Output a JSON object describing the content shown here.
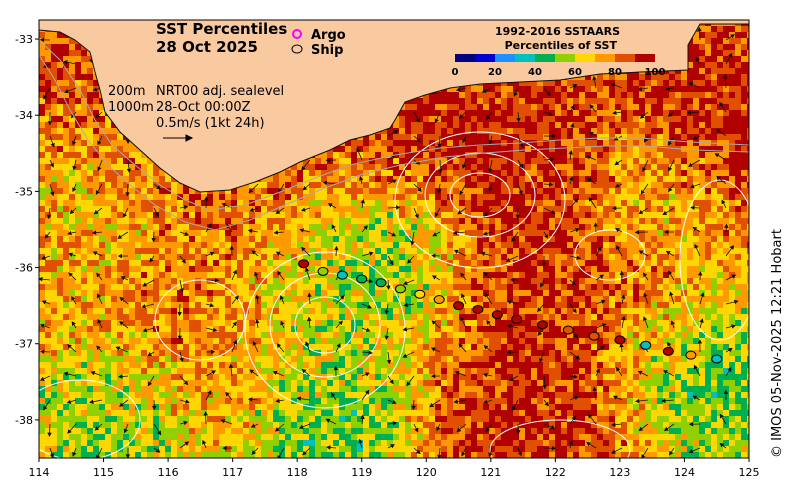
{
  "title": "SST Percentiles",
  "date": "28 Oct 2025",
  "legend": {
    "argo": "Argo",
    "ship": "Ship",
    "argo_color": "#ff00ff",
    "ship_color": "#000000"
  },
  "colorbar": {
    "title_line1": "1992-2016 SSTAARS",
    "title_line2": "Percentiles of SST",
    "labels": [
      "0",
      "20",
      "40",
      "60",
      "80",
      "100"
    ],
    "colors": [
      "#000080",
      "#0000d0",
      "#1e90ff",
      "#00c0c0",
      "#00b050",
      "#90d000",
      "#ffd700",
      "#ff9900",
      "#e05000",
      "#b00000"
    ]
  },
  "info": {
    "depth1": "200m",
    "depth2": "1000m",
    "line1": "NRT00 adj. sealevel",
    "line2": "28-Oct 00:00Z",
    "line3": "0.5m/s (1kt 24h)"
  },
  "axes": {
    "x_labels": [
      "114",
      "115",
      "116",
      "117",
      "118",
      "119",
      "120",
      "121",
      "122",
      "123",
      "124",
      "125"
    ],
    "y_labels": [
      "-33",
      "-34",
      "-35",
      "-36",
      "-37",
      "-38"
    ]
  },
  "credit": "© IMOS 05-Nov-2025 12:21 Hobart",
  "colors": {
    "land": "#f9c9a0",
    "coast": "#111111",
    "isobath": "#aaaaaa",
    "contour": "#ffffff"
  },
  "ship_track": [
    {
      "lon": 118.1,
      "lat": -35.95,
      "pct": 92
    },
    {
      "lon": 118.4,
      "lat": -36.05,
      "pct": 50
    },
    {
      "lon": 118.7,
      "lat": -36.1,
      "pct": 35
    },
    {
      "lon": 119.0,
      "lat": -36.15,
      "pct": 40
    },
    {
      "lon": 119.3,
      "lat": -36.2,
      "pct": 45
    },
    {
      "lon": 119.6,
      "lat": -36.28,
      "pct": 55
    },
    {
      "lon": 119.9,
      "lat": -36.35,
      "pct": 60
    },
    {
      "lon": 120.2,
      "lat": -36.42,
      "pct": 70
    },
    {
      "lon": 120.5,
      "lat": -36.5,
      "pct": 95
    },
    {
      "lon": 120.8,
      "lat": -36.55,
      "pct": 95
    },
    {
      "lon": 121.1,
      "lat": -36.62,
      "pct": 95
    },
    {
      "lon": 121.4,
      "lat": -36.68,
      "pct": 95
    },
    {
      "lon": 121.8,
      "lat": -36.75,
      "pct": 90
    },
    {
      "lon": 122.2,
      "lat": -36.82,
      "pct": 85
    },
    {
      "lon": 122.6,
      "lat": -36.9,
      "pct": 80
    },
    {
      "lon": 123.0,
      "lat": -36.95,
      "pct": 90
    },
    {
      "lon": 123.4,
      "lat": -37.02,
      "pct": 35
    },
    {
      "lon": 123.75,
      "lat": -37.1,
      "pct": 95
    },
    {
      "lon": 124.1,
      "lat": -37.15,
      "pct": 70
    },
    {
      "lon": 124.5,
      "lat": -37.2,
      "pct": 30
    }
  ]
}
